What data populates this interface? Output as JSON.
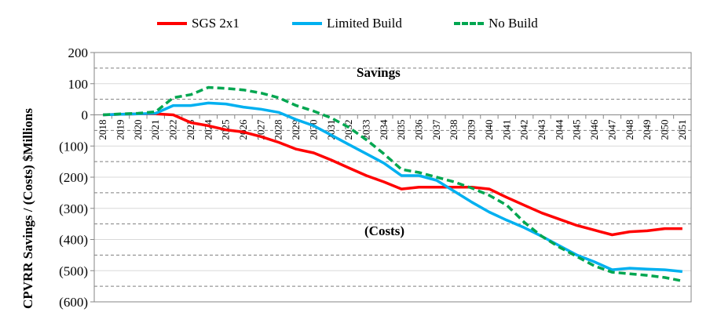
{
  "chart_data": {
    "type": "line",
    "title": "",
    "xlabel": "",
    "ylabel": "CPVRR Savings / (Costs) $Millions",
    "ylim": [
      -600,
      200
    ],
    "yticks": [
      200,
      100,
      0,
      -100,
      -200,
      -300,
      -400,
      -500,
      -600
    ],
    "ytick_labels": [
      "200",
      "100",
      "0",
      "(100)",
      "(200)",
      "(300)",
      "(400)",
      "(500)",
      "(600)"
    ],
    "grid": "dashed horizontal at every 50",
    "legend_position": "top",
    "x": [
      "2018",
      "2019",
      "2020",
      "2021",
      "2022",
      "2023",
      "2024",
      "2025",
      "2026",
      "2027",
      "2028",
      "2029",
      "2030",
      "2031",
      "2032",
      "2033",
      "2034",
      "2035",
      "2036",
      "2037",
      "2038",
      "2039",
      "2040",
      "2041",
      "2042",
      "2043",
      "2044",
      "2045",
      "2046",
      "2047",
      "2048",
      "2049",
      "2050",
      "2051"
    ],
    "series": [
      {
        "name": "SGS 2x1",
        "color": "#ff0000",
        "style": "solid",
        "values": [
          0,
          2,
          3,
          3,
          0,
          -25,
          -35,
          -48,
          -55,
          -70,
          -88,
          -110,
          -122,
          -145,
          -170,
          -195,
          -215,
          -238,
          -232,
          -232,
          -232,
          -232,
          -238,
          -265,
          -290,
          -315,
          -335,
          -355,
          -370,
          -385,
          -375,
          -372,
          -365,
          -365
        ]
      },
      {
        "name": "Limited Build",
        "color": "#00b0f0",
        "style": "solid",
        "values": [
          0,
          2,
          3,
          5,
          30,
          30,
          38,
          35,
          25,
          18,
          8,
          -15,
          -35,
          -65,
          -95,
          -125,
          -155,
          -195,
          -195,
          -210,
          -245,
          -280,
          -312,
          -338,
          -362,
          -390,
          -420,
          -450,
          -472,
          -497,
          -492,
          -495,
          -497,
          -503
        ]
      },
      {
        "name": "No Build",
        "color": "#00a650",
        "style": "dashed",
        "values": [
          0,
          3,
          5,
          10,
          55,
          65,
          88,
          85,
          80,
          70,
          55,
          30,
          12,
          -10,
          -40,
          -80,
          -125,
          -175,
          -185,
          -200,
          -215,
          -235,
          -258,
          -290,
          -345,
          -390,
          -425,
          -455,
          -485,
          -505,
          -510,
          -515,
          -522,
          -533
        ]
      }
    ],
    "annotations": [
      {
        "text": "Savings",
        "x": "2038",
        "y": 130
      },
      {
        "text": "(Costs)",
        "x": "2038",
        "y": -375
      }
    ]
  }
}
